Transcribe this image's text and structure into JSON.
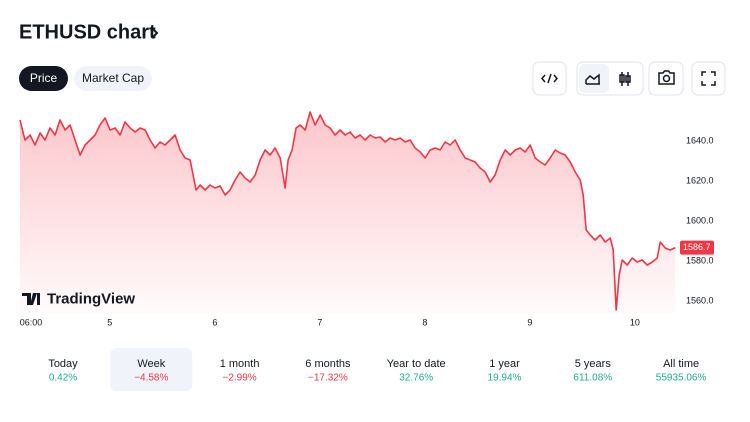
{
  "header": {
    "title": "ETHUSD chart"
  },
  "tabs": [
    "Price",
    "Market Cap"
  ],
  "watermark": "TradingView",
  "chart_data": {
    "type": "line",
    "x": [
      4.145,
      4.193,
      4.241,
      4.288,
      4.336,
      4.384,
      4.431,
      4.479,
      4.526,
      4.574,
      4.622,
      4.669,
      4.717,
      4.765,
      4.812,
      4.86,
      4.907,
      4.955,
      5.003,
      5.05,
      5.098,
      5.145,
      5.193,
      5.241,
      5.288,
      5.336,
      5.384,
      5.431,
      5.479,
      5.526,
      5.574,
      5.622,
      5.669,
      5.717,
      5.765,
      5.793,
      5.822,
      5.86,
      5.907,
      5.955,
      6.003,
      6.05,
      6.098,
      6.145,
      6.193,
      6.241,
      6.288,
      6.336,
      6.384,
      6.431,
      6.479,
      6.526,
      6.574,
      6.622,
      6.669,
      6.698,
      6.736,
      6.774,
      6.812,
      6.86,
      6.907,
      6.955,
      7.003,
      7.05,
      7.098,
      7.145,
      7.193,
      7.241,
      7.288,
      7.336,
      7.384,
      7.431,
      7.479,
      7.526,
      7.574,
      7.622,
      7.669,
      7.717,
      7.765,
      7.812,
      7.86,
      7.907,
      7.955,
      8.003,
      8.05,
      8.098,
      8.145,
      8.193,
      8.241,
      8.288,
      8.336,
      8.384,
      8.431,
      8.479,
      8.526,
      8.574,
      8.622,
      8.669,
      8.717,
      8.765,
      8.812,
      8.86,
      8.907,
      8.955,
      9.003,
      9.05,
      9.098,
      9.145,
      9.193,
      9.241,
      9.288,
      9.336,
      9.384,
      9.431,
      9.479,
      9.507,
      9.536,
      9.574,
      9.622,
      9.669,
      9.717,
      9.765,
      9.793,
      9.822,
      9.85,
      9.879,
      9.926,
      9.974,
      10.022,
      10.069,
      10.117,
      10.165,
      10.212,
      10.241,
      10.288,
      10.336,
      10.384
    ],
    "series": [
      {
        "name": "ETHUSD",
        "color": "#f23645",
        "values": [
          1650.5,
          1640.5,
          1643,
          1638,
          1644,
          1640.5,
          1646.5,
          1643,
          1650.5,
          1645.5,
          1648,
          1640.5,
          1633,
          1638,
          1640.5,
          1643,
          1648,
          1651.5,
          1645.5,
          1646.5,
          1643,
          1649.5,
          1646.5,
          1644.5,
          1646.5,
          1645.5,
          1640.5,
          1636.5,
          1639.5,
          1638,
          1640.5,
          1643,
          1635.5,
          1631.5,
          1630.5,
          1623,
          1615.5,
          1618,
          1615.5,
          1618,
          1616.5,
          1617.5,
          1613,
          1615.5,
          1620.5,
          1624.5,
          1621.5,
          1619.5,
          1623,
          1630.5,
          1635.5,
          1633,
          1636.5,
          1631.5,
          1616.5,
          1630.5,
          1635.5,
          1646.5,
          1648,
          1645.5,
          1654.5,
          1648,
          1653,
          1648,
          1646.5,
          1643,
          1645.5,
          1643,
          1644.5,
          1641.5,
          1643,
          1640.5,
          1643,
          1641.5,
          1642,
          1639.5,
          1641.5,
          1640.5,
          1641.5,
          1639.5,
          1640.5,
          1636.5,
          1634.5,
          1631.5,
          1635.5,
          1636.5,
          1635.5,
          1639.5,
          1638,
          1640.5,
          1635.5,
          1631.5,
          1630.5,
          1629.5,
          1626.5,
          1624.5,
          1619.5,
          1623,
          1630.5,
          1635.5,
          1633,
          1635.5,
          1636.5,
          1634.5,
          1638,
          1631.5,
          1629.5,
          1628,
          1631.5,
          1635.5,
          1634,
          1633,
          1629.5,
          1624.5,
          1620.5,
          1613,
          1595.5,
          1593,
          1590.5,
          1593,
          1589.5,
          1591.5,
          1585.5,
          1555.5,
          1573,
          1580.5,
          1578,
          1581.5,
          1579.5,
          1580.5,
          1578,
          1579.5,
          1581.5,
          1589.5,
          1586.5,
          1585.5,
          1586.7
        ]
      }
    ],
    "xlim": [
      4.145,
      10.41
    ],
    "xticks": [
      {
        "value": 4.25,
        "label": "06:00"
      },
      5,
      6,
      7,
      8,
      9,
      10
    ],
    "ylim": [
      1554,
      1655.5
    ],
    "yticks": [
      {
        "value": 1560,
        "label": "1560.0"
      },
      {
        "value": 1580,
        "label": "1580.0"
      },
      {
        "value": 1600,
        "label": "1600.0"
      },
      {
        "value": 1620,
        "label": "1620.0"
      },
      {
        "value": 1640,
        "label": "1640.0"
      }
    ]
  },
  "periods": [
    {
      "label": "Today",
      "change": "0.42%"
    },
    {
      "label": "Week",
      "change": "−4.58%"
    },
    {
      "label": "1 month",
      "change": "−2.99%"
    },
    {
      "label": "6 months",
      "change": "−17.32%"
    },
    {
      "label": "Year to date",
      "change": "32.76%"
    },
    {
      "label": "1 year",
      "change": "19.94%"
    },
    {
      "label": "5 years",
      "change": "611.08%"
    },
    {
      "label": "All time",
      "change": "55935.06%"
    }
  ],
  "selected_period": 1
}
